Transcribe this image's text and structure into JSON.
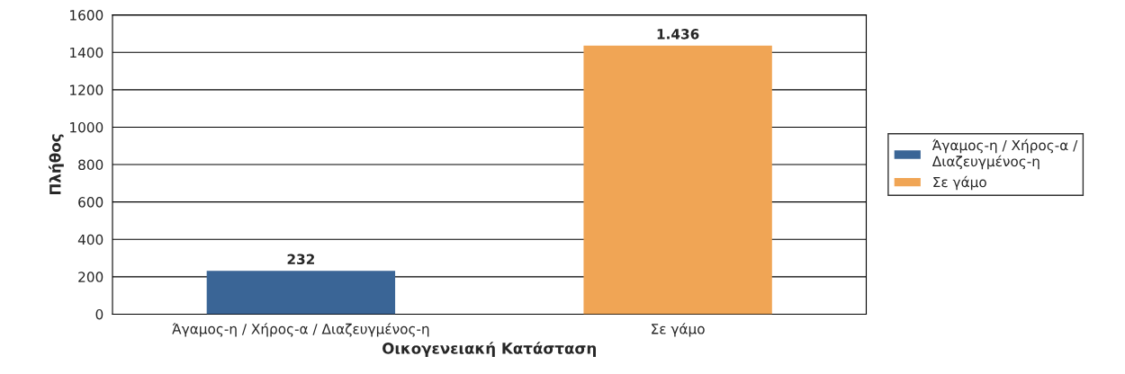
{
  "chart_data": {
    "type": "bar",
    "xlabel": "Οικογενειακή Κατάσταση",
    "ylabel": "Πλήθος",
    "categories": [
      "Άγαμος-η / Χήρος-α / Διαζευγμένος-η",
      "Σε γάμο"
    ],
    "series": [
      {
        "name": "Άγαμος-η / Χήρος-α / Διαζευγμένος-η",
        "color": "#3a6596",
        "values": [
          232,
          null
        ],
        "value_labels": [
          "232",
          null
        ]
      },
      {
        "name": "Σε γάμο",
        "color": "#f0a555",
        "values": [
          null,
          1436
        ],
        "value_labels": [
          null,
          "1.436"
        ]
      }
    ],
    "ylim": [
      0,
      1600
    ],
    "yticks": [
      0,
      200,
      400,
      600,
      800,
      1000,
      1200,
      1400,
      1600
    ],
    "grid": "y",
    "legend": "right"
  }
}
